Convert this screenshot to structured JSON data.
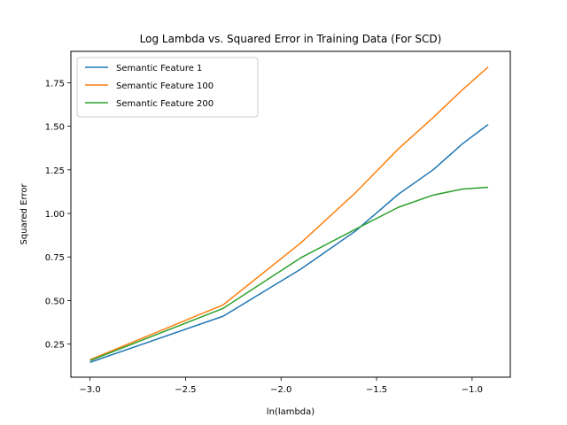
{
  "chart_data": {
    "type": "line",
    "title": "Log Lambda vs. Squared Error in Training Data (For SCD)",
    "xlabel": "ln(lambda)",
    "ylabel": "Squared Error",
    "xlim": [
      -3.1,
      -0.8
    ],
    "ylim": [
      0.06,
      1.93
    ],
    "xticks": [
      -3.0,
      -2.5,
      -2.0,
      -1.5,
      -1.0
    ],
    "xtick_labels": [
      "−3.0",
      "−2.5",
      "−2.0",
      "−1.5",
      "−1.0"
    ],
    "yticks": [
      0.25,
      0.5,
      0.75,
      1.0,
      1.25,
      1.5,
      1.75
    ],
    "ytick_labels": [
      "0.25",
      "0.50",
      "0.75",
      "1.00",
      "1.25",
      "1.50",
      "1.75"
    ],
    "grid": false,
    "legend": "top-left",
    "series": [
      {
        "name": "Semantic Feature 1",
        "color": "#1f77b4",
        "x": [
          -3.0,
          -2.303,
          -1.897,
          -1.609,
          -1.386,
          -1.204,
          -1.05,
          -0.916
        ],
        "y": [
          0.145,
          0.41,
          0.68,
          0.9,
          1.11,
          1.25,
          1.4,
          1.51
        ]
      },
      {
        "name": "Semantic Feature 100",
        "color": "#ff7f0e",
        "x": [
          -3.0,
          -2.303,
          -1.897,
          -1.609,
          -1.386,
          -1.204,
          -1.05,
          -0.916
        ],
        "y": [
          0.16,
          0.475,
          0.83,
          1.12,
          1.37,
          1.55,
          1.71,
          1.84
        ]
      },
      {
        "name": "Semantic Feature 200",
        "color": "#2ca02c",
        "x": [
          -3.0,
          -2.303,
          -1.897,
          -1.609,
          -1.386,
          -1.204,
          -1.05,
          -0.916
        ],
        "y": [
          0.155,
          0.455,
          0.745,
          0.91,
          1.035,
          1.105,
          1.14,
          1.15
        ]
      }
    ]
  }
}
